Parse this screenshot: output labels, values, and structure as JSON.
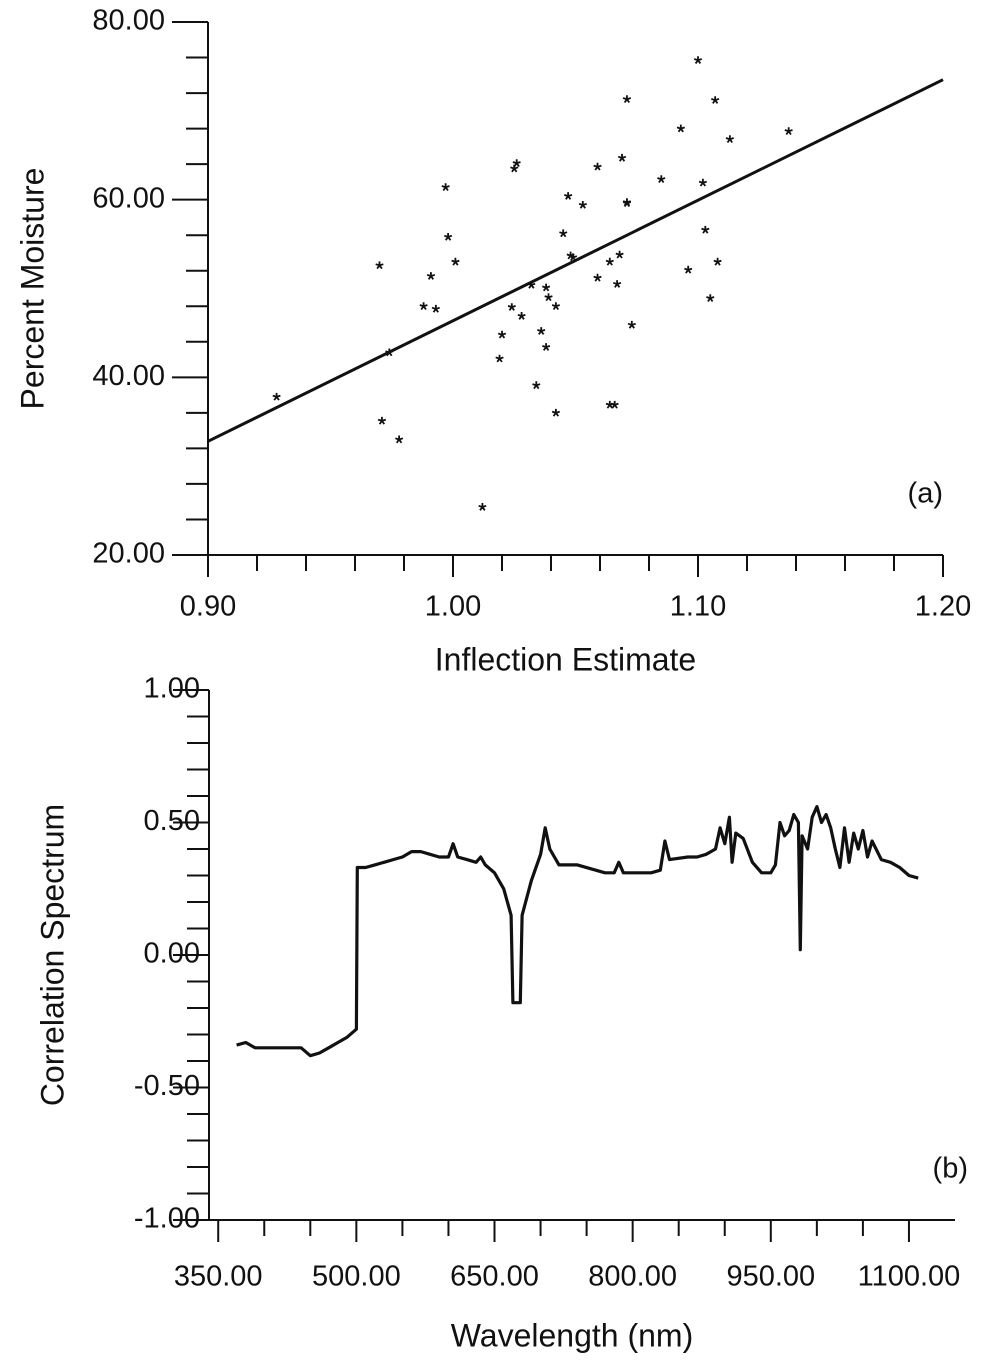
{
  "chart_data": [
    {
      "type": "scatter",
      "x_label": "Inflection Estimate",
      "y_label": "Percent Moisture",
      "annotation": "(a)",
      "x": [
        0.928,
        0.97,
        0.974,
        0.971,
        0.978,
        0.988,
        0.991,
        0.993,
        0.997,
        0.998,
        1.001,
        1.012,
        1.019,
        1.02,
        1.024,
        1.025,
        1.026,
        1.028,
        1.032,
        1.034,
        1.036,
        1.038,
        1.038,
        1.039,
        1.042,
        1.042,
        1.045,
        1.047,
        1.048,
        1.049,
        1.053,
        1.059,
        1.059,
        1.064,
        1.064,
        1.066,
        1.067,
        1.068,
        1.069,
        1.071,
        1.071,
        1.071,
        1.073,
        1.085,
        1.093,
        1.096,
        1.1,
        1.102,
        1.103,
        1.105,
        1.107,
        1.108,
        1.113,
        1.137
      ],
      "y": [
        37.8,
        52.6,
        42.8,
        35.1,
        33.0,
        48.0,
        51.4,
        47.7,
        61.4,
        55.8,
        53.0,
        25.4,
        42.1,
        44.8,
        47.9,
        63.5,
        64.1,
        46.9,
        50.4,
        39.1,
        45.2,
        43.4,
        50.1,
        49.0,
        48.0,
        36.0,
        56.2,
        60.4,
        53.7,
        53.5,
        59.4,
        51.2,
        63.7,
        53.0,
        36.9,
        36.9,
        50.5,
        53.8,
        64.7,
        59.7,
        71.3,
        59.6,
        45.9,
        62.3,
        68.0,
        52.1,
        75.7,
        61.9,
        56.6,
        48.9,
        71.2,
        53.0,
        66.8,
        67.7
      ],
      "fit": {
        "x": [
          0.9,
          1.2
        ],
        "y": [
          32.8,
          73.5
        ]
      },
      "xlim": [
        0.9,
        1.2
      ],
      "ylim": [
        20,
        80
      ],
      "xticks": [
        {
          "value": 0.9,
          "label": "0.90"
        },
        {
          "value": 1.0,
          "label": "1.00"
        },
        {
          "value": 1.1,
          "label": "1.10"
        },
        {
          "value": 1.2,
          "label": "1.20"
        }
      ],
      "yticks": [
        {
          "value": 20,
          "label": "20.00"
        },
        {
          "value": 40,
          "label": "40.00"
        },
        {
          "value": 60,
          "label": "60.00"
        },
        {
          "value": 80,
          "label": "80.00"
        }
      ],
      "xminorticks": [
        0.92,
        0.94,
        0.96,
        0.98,
        1.02,
        1.04,
        1.06,
        1.08,
        1.12,
        1.14,
        1.16,
        1.18
      ],
      "yminorticks": [
        24,
        28,
        32,
        36,
        44,
        48,
        52,
        56,
        64,
        68,
        72,
        76
      ]
    },
    {
      "type": "line",
      "x_label": "Wavelength (nm)",
      "y_label": "Correlation Spectrum",
      "annotation": "(b)",
      "x": [
        370,
        380,
        390,
        400,
        420,
        440,
        450,
        460,
        470,
        480,
        490,
        500,
        501,
        510,
        520,
        530,
        540,
        550,
        560,
        570,
        580,
        590,
        600,
        605,
        610,
        620,
        630,
        635,
        640,
        650,
        660,
        668,
        670,
        678,
        680,
        690,
        700,
        705,
        710,
        720,
        740,
        760,
        770,
        780,
        785,
        790,
        820,
        830,
        835,
        840,
        860,
        870,
        880,
        890,
        895,
        900,
        905,
        908,
        912,
        920,
        930,
        940,
        950,
        955,
        960,
        965,
        970,
        975,
        980,
        982,
        984,
        990,
        995,
        1000,
        1005,
        1010,
        1015,
        1020,
        1025,
        1030,
        1035,
        1040,
        1045,
        1050,
        1055,
        1060,
        1070,
        1080,
        1090,
        1100,
        1110
      ],
      "y": [
        -0.34,
        -0.33,
        -0.35,
        -0.35,
        -0.35,
        -0.35,
        -0.38,
        -0.37,
        -0.35,
        -0.33,
        -0.31,
        -0.28,
        0.33,
        0.33,
        0.34,
        0.35,
        0.36,
        0.37,
        0.39,
        0.39,
        0.38,
        0.37,
        0.37,
        0.42,
        0.37,
        0.36,
        0.35,
        0.37,
        0.34,
        0.31,
        0.25,
        0.15,
        -0.18,
        -0.18,
        0.15,
        0.28,
        0.38,
        0.48,
        0.4,
        0.34,
        0.34,
        0.32,
        0.31,
        0.31,
        0.35,
        0.31,
        0.31,
        0.32,
        0.43,
        0.36,
        0.37,
        0.37,
        0.38,
        0.4,
        0.48,
        0.42,
        0.52,
        0.35,
        0.46,
        0.44,
        0.35,
        0.31,
        0.31,
        0.34,
        0.5,
        0.45,
        0.47,
        0.53,
        0.5,
        0.02,
        0.45,
        0.4,
        0.52,
        0.56,
        0.5,
        0.53,
        0.48,
        0.4,
        0.33,
        0.48,
        0.35,
        0.46,
        0.4,
        0.47,
        0.37,
        0.43,
        0.36,
        0.35,
        0.33,
        0.3,
        0.29
      ],
      "xlim": [
        340,
        1150
      ],
      "ylim": [
        -1,
        1
      ],
      "xticks": [
        {
          "value": 350,
          "label": "350.00"
        },
        {
          "value": 500,
          "label": "500.00"
        },
        {
          "value": 650,
          "label": "650.00"
        },
        {
          "value": 800,
          "label": "800.00"
        },
        {
          "value": 950,
          "label": "950.00"
        },
        {
          "value": 1100,
          "label": "1100.00"
        }
      ],
      "yticks": [
        {
          "value": -1,
          "label": "-1.00"
        },
        {
          "value": -0.5,
          "label": "-0.50"
        },
        {
          "value": 0,
          "label": "0.00"
        },
        {
          "value": 0.5,
          "label": "0.50"
        },
        {
          "value": 1,
          "label": "1.00"
        }
      ],
      "xminorticks": [
        400,
        450,
        550,
        600,
        700,
        750,
        850,
        900,
        1000,
        1050
      ],
      "yminorticks": [
        -0.9,
        -0.8,
        -0.7,
        -0.6,
        -0.4,
        -0.3,
        -0.2,
        -0.1,
        0.1,
        0.2,
        0.3,
        0.4,
        0.6,
        0.7,
        0.8,
        0.9
      ]
    }
  ]
}
